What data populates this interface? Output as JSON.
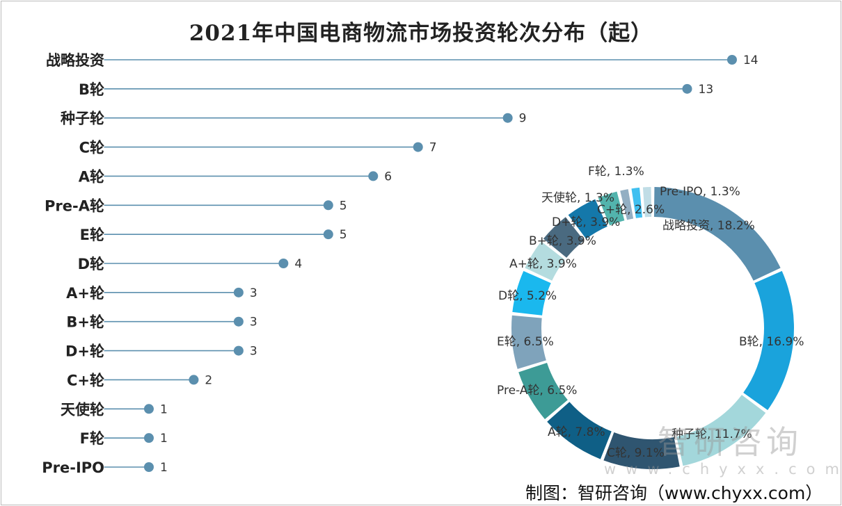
{
  "chart_data": [
    {
      "type": "lollipop",
      "title": "2021年中国电商物流市场投资轮次分布（起）",
      "categories": [
        "战略投资",
        "B轮",
        "种子轮",
        "C轮",
        "A轮",
        "Pre-A轮",
        "E轮",
        "D轮",
        "A+轮",
        "B+轮",
        "D+轮",
        "C+轮",
        "天使轮",
        "F轮",
        "Pre-IPO"
      ],
      "values": [
        14,
        13,
        9,
        7,
        6,
        5,
        5,
        4,
        3,
        3,
        3,
        2,
        1,
        1,
        1
      ],
      "xlim": [
        0,
        14
      ],
      "grid": false,
      "color": "#5b8fae"
    },
    {
      "type": "pie",
      "donut": true,
      "categories": [
        "战略投资",
        "B轮",
        "种子轮",
        "C轮",
        "A轮",
        "Pre-A轮",
        "E轮",
        "D轮",
        "A+轮",
        "B+轮",
        "D+轮",
        "C+轮",
        "天使轮",
        "F轮",
        "Pre-IPO"
      ],
      "values": [
        18.2,
        16.9,
        11.7,
        9.1,
        7.8,
        6.5,
        6.5,
        5.2,
        3.9,
        3.9,
        3.9,
        2.6,
        1.3,
        1.3,
        1.3
      ],
      "labels": [
        "战略投资, 18.2%",
        "B轮, 16.9%",
        "种子轮, 11.7%",
        "C轮, 9.1%",
        "A轮, 7.8%",
        "Pre-A轮, 6.5%",
        "E轮, 6.5%",
        "D轮, 5.2%",
        "A+轮, 3.9%",
        "B+轮, 3.9%",
        "D+轮, 3.9%",
        "C+轮, 2.6%",
        "天使轮, 1.3%",
        "F轮, 1.3%",
        "Pre-IPO, 1.3%"
      ],
      "colors": [
        "#5b8fae",
        "#1aa3dc",
        "#a3d7db",
        "#2f5570",
        "#0f5f86",
        "#3d9b96",
        "#7fa3bb",
        "#1ab8ee",
        "#b4dcdf",
        "#4a6a80",
        "#1478aa",
        "#52b4ad",
        "#93afc3",
        "#40c0f0",
        "#c0dde6"
      ]
    }
  ],
  "source": "制图：智研咨询（www.chyxx.com）",
  "watermark": {
    "name": "智研咨询",
    "url": "www.chyxx.com"
  }
}
